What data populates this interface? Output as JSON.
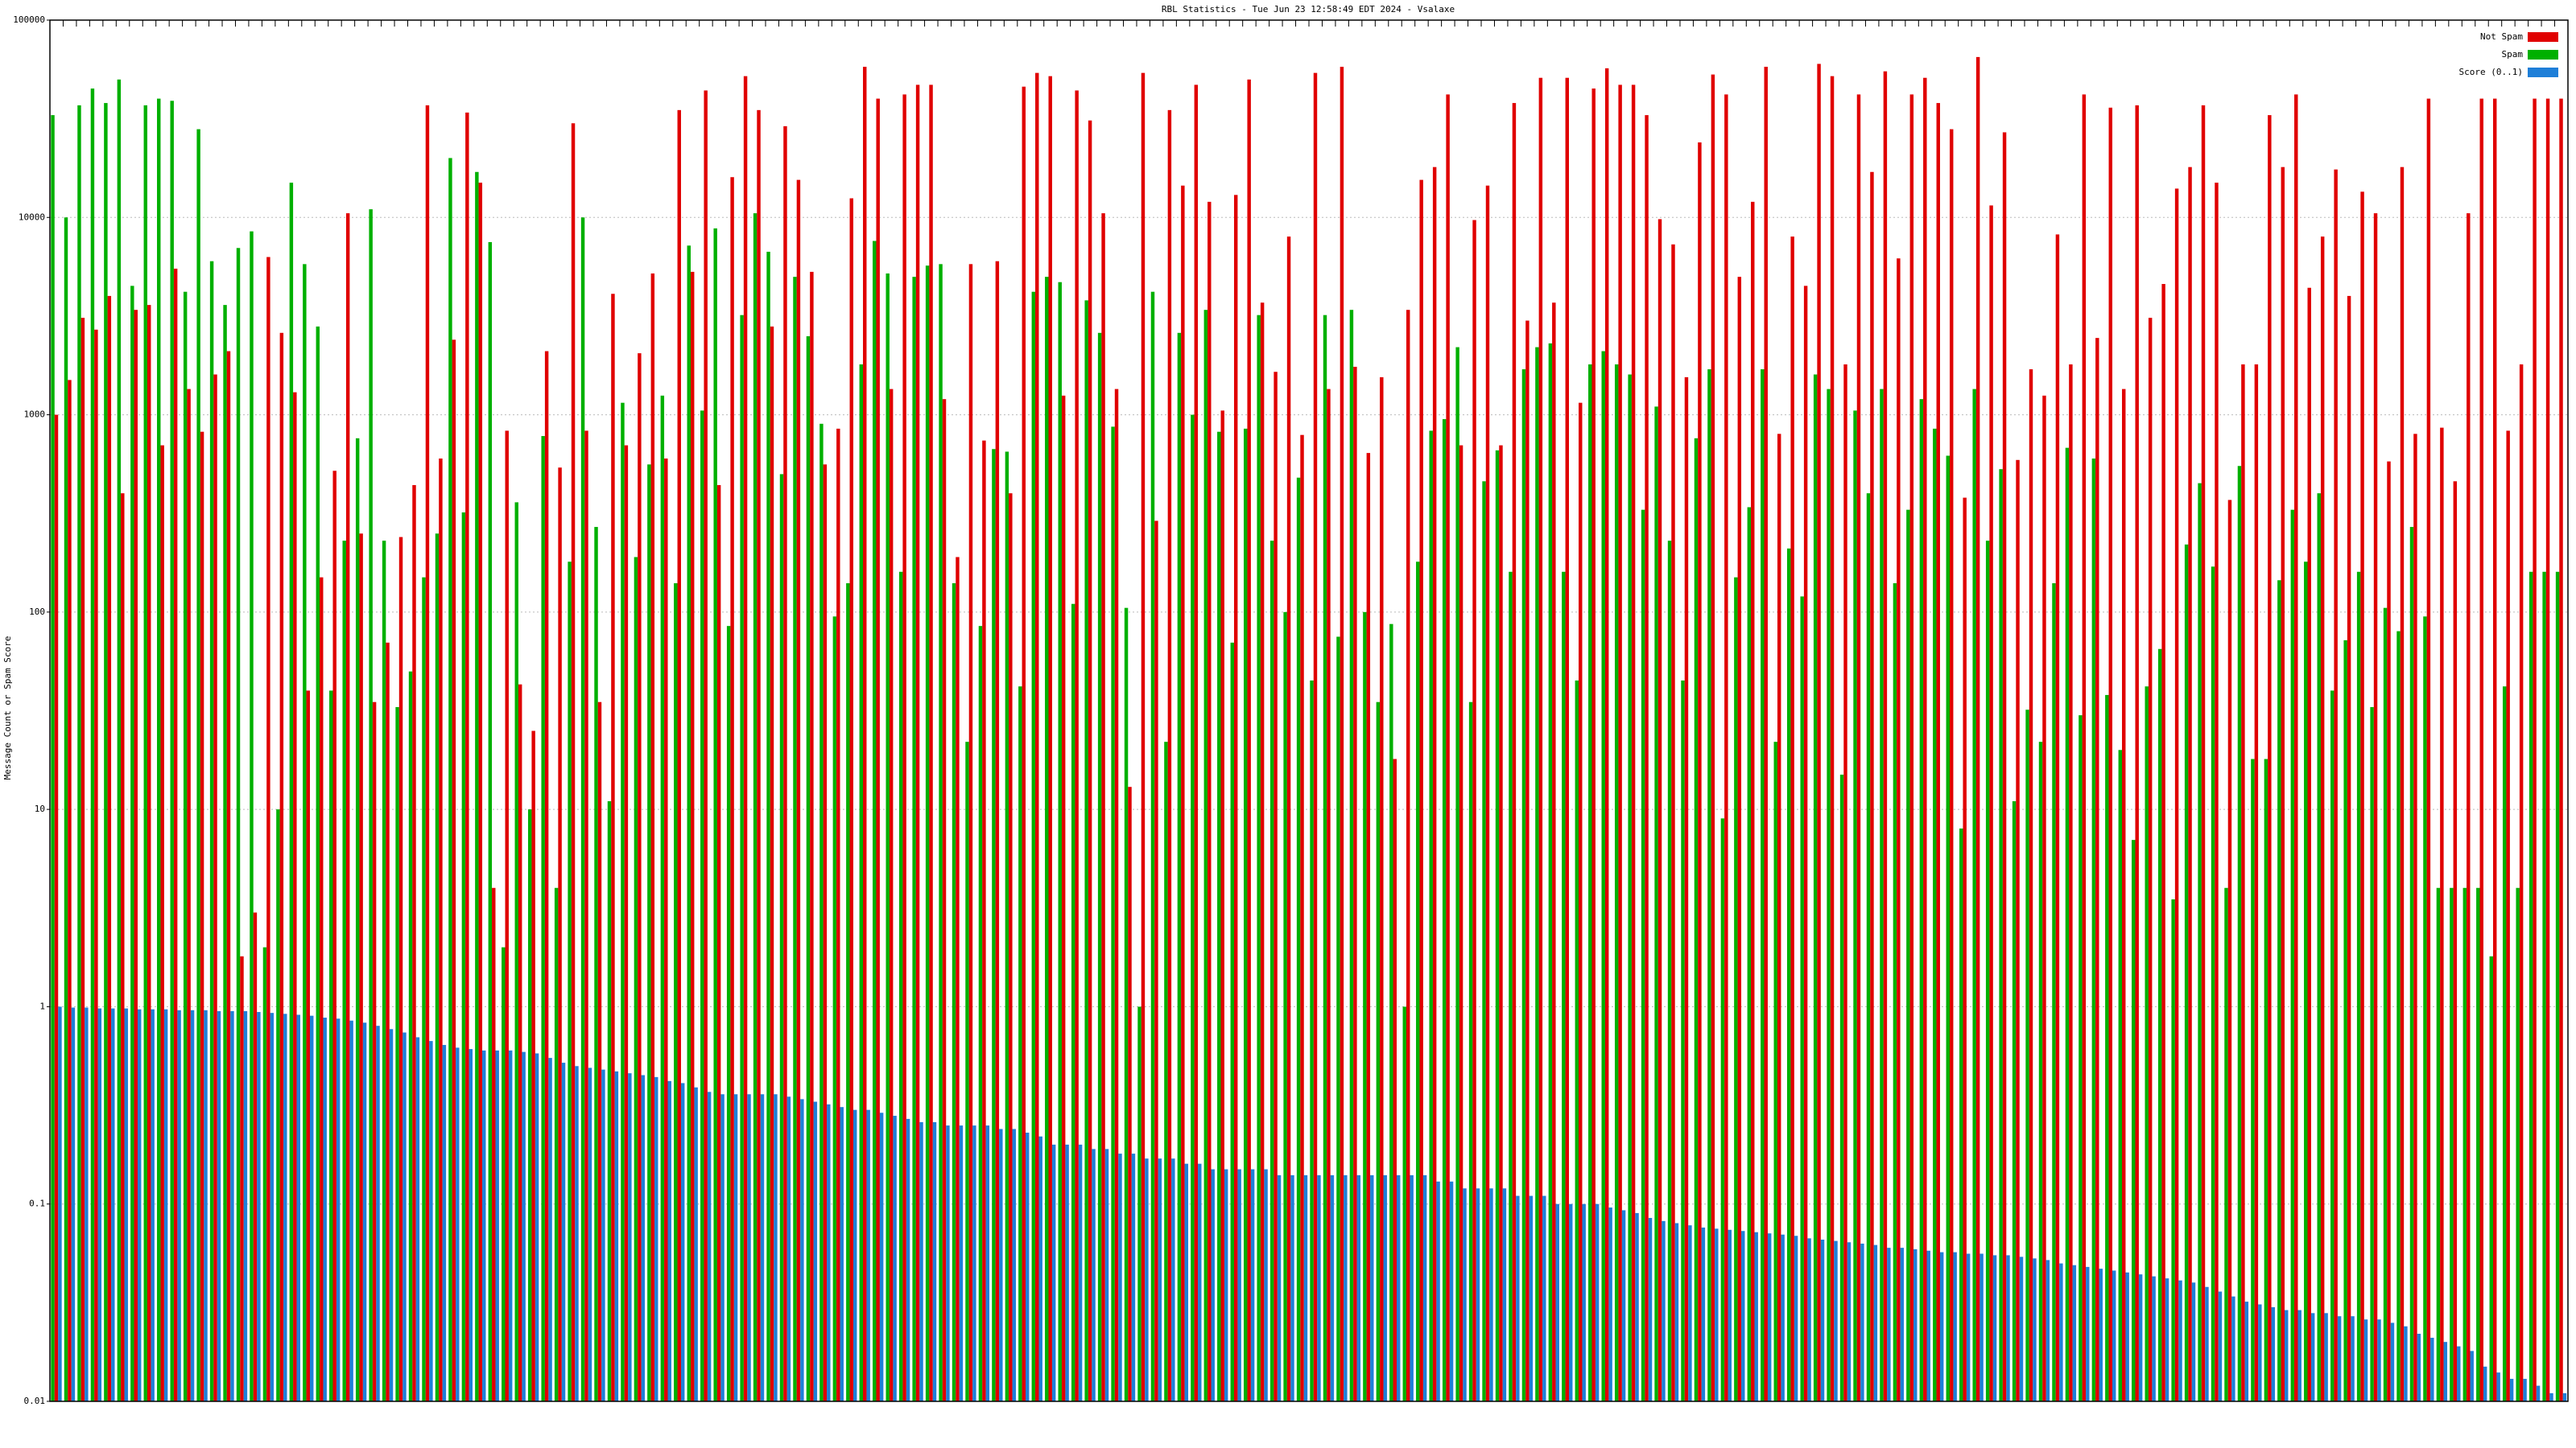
{
  "chart_data": {
    "type": "bar",
    "title": "RBL Statistics - Tue Jun 23 12:58:49 EDT 2024 - Vsalaxe",
    "y_label": "Message Count or Spam Score",
    "log_scale": true,
    "grid": true,
    "legend": "top-right",
    "ylim": [
      0.01,
      100000
    ],
    "yticks": [
      0.01,
      0.1,
      1,
      10,
      100,
      1000,
      10000,
      100000
    ],
    "series": [
      {
        "name": "Not Spam",
        "color": "#e00000",
        "values": [
          1000,
          1500,
          3100,
          2700,
          4000,
          400,
          3400,
          3600,
          700,
          5500,
          1350,
          820,
          1600,
          2100,
          1.8,
          3,
          6300,
          2600,
          1300,
          40,
          150,
          520,
          10500,
          250,
          35,
          70,
          240,
          440,
          37000,
          600,
          2400,
          34000,
          15000,
          4,
          830,
          43,
          25,
          2100,
          540,
          30000,
          830,
          35,
          4100,
          700,
          2050,
          5200,
          600,
          35000,
          5300,
          44000,
          440,
          16000,
          52000,
          35000,
          2800,
          29000,
          15500,
          5300,
          560,
          850,
          12500,
          58000,
          40000,
          1350,
          42000,
          47000,
          47000,
          1200,
          190,
          5800,
          740,
          6000,
          400,
          46000,
          54000,
          52000,
          1250,
          44000,
          31000,
          10500,
          1350,
          13,
          54000,
          290,
          35000,
          14500,
          47000,
          12000,
          1050,
          13000,
          50000,
          3700,
          1650,
          8000,
          790,
          54000,
          1350,
          58000,
          1750,
          640,
          1550,
          18,
          3400,
          15500,
          18000,
          42000,
          700,
          9700,
          14500,
          700,
          38000,
          3000,
          51000,
          3700,
          51000,
          1150,
          45000,
          57000,
          47000,
          47000,
          33000,
          9800,
          7300,
          1550,
          24000,
          53000,
          42000,
          5000,
          12000,
          58000,
          800,
          8000,
          4500,
          60000,
          52000,
          1800,
          42000,
          17000,
          55000,
          6200,
          42000,
          51000,
          38000,
          28000,
          380,
          65000,
          11500,
          27000,
          590,
          1700,
          1250,
          8200,
          1800,
          42000,
          2450,
          36000,
          1350,
          37000,
          3100,
          4600,
          14000,
          18000,
          37000,
          15000,
          370,
          1800,
          1800,
          33000,
          18000,
          42000,
          4400,
          8000,
          17500,
          4000,
          13500,
          10500,
          580,
          18000,
          800,
          40000,
          860,
          460,
          10500,
          40000,
          40000,
          830,
          1800,
          40000,
          40000,
          40000
        ]
      },
      {
        "name": "Spam",
        "color": "#00b000",
        "values": [
          33000,
          10000,
          37000,
          45000,
          38000,
          50000,
          4500,
          37000,
          40000,
          39000,
          4200,
          28000,
          6000,
          3600,
          7000,
          8500,
          2,
          10,
          15000,
          5800,
          2800,
          40,
          230,
          760,
          11000,
          230,
          33,
          50,
          150,
          250,
          20000,
          320,
          17000,
          7500,
          2,
          360,
          10,
          780,
          4,
          180,
          10000,
          270,
          11,
          1150,
          190,
          560,
          1250,
          140,
          7200,
          1050,
          8800,
          85,
          3200,
          10500,
          6700,
          500,
          5000,
          2500,
          900,
          95,
          140,
          1800,
          7600,
          5200,
          160,
          5000,
          5700,
          5800,
          140,
          22,
          85,
          670,
          650,
          42,
          4200,
          5000,
          4700,
          110,
          3800,
          2600,
          870,
          105,
          1,
          4200,
          22,
          2600,
          1000,
          3400,
          820,
          70,
          850,
          3200,
          230,
          100,
          480,
          45,
          3200,
          75,
          3400,
          100,
          35,
          87,
          1,
          180,
          830,
          950,
          2200,
          35,
          460,
          660,
          160,
          1700,
          2200,
          2300,
          160,
          45,
          1800,
          2100,
          1800,
          1600,
          330,
          1100,
          230,
          45,
          760,
          1700,
          9,
          150,
          340,
          1700,
          22,
          210,
          120,
          1600,
          1350,
          15,
          1050,
          400,
          1350,
          140,
          330,
          1200,
          850,
          620,
          8,
          1350,
          230,
          530,
          11,
          32,
          22,
          140,
          680,
          30,
          600,
          38,
          20,
          7,
          42,
          65,
          3.5,
          220,
          450,
          170,
          4,
          550,
          18,
          18,
          145,
          330,
          180,
          400,
          40,
          72,
          160,
          33,
          105,
          80,
          270,
          95,
          4,
          4,
          4,
          4,
          1.8,
          42,
          4,
          160,
          160,
          160
        ]
      },
      {
        "name": "Score (0..1)",
        "color": "#1e7fd8",
        "values": [
          1,
          0.99,
          0.99,
          0.98,
          0.98,
          0.98,
          0.97,
          0.97,
          0.97,
          0.96,
          0.96,
          0.96,
          0.95,
          0.95,
          0.95,
          0.94,
          0.93,
          0.92,
          0.91,
          0.9,
          0.88,
          0.87,
          0.85,
          0.83,
          0.8,
          0.77,
          0.74,
          0.7,
          0.67,
          0.64,
          0.62,
          0.61,
          0.6,
          0.6,
          0.6,
          0.59,
          0.58,
          0.55,
          0.52,
          0.5,
          0.49,
          0.48,
          0.47,
          0.46,
          0.45,
          0.44,
          0.42,
          0.41,
          0.39,
          0.37,
          0.36,
          0.36,
          0.36,
          0.36,
          0.36,
          0.35,
          0.34,
          0.33,
          0.32,
          0.31,
          0.3,
          0.3,
          0.29,
          0.28,
          0.27,
          0.26,
          0.26,
          0.25,
          0.25,
          0.25,
          0.25,
          0.24,
          0.24,
          0.23,
          0.22,
          0.2,
          0.2,
          0.2,
          0.19,
          0.19,
          0.18,
          0.18,
          0.17,
          0.17,
          0.17,
          0.16,
          0.16,
          0.15,
          0.15,
          0.15,
          0.15,
          0.15,
          0.14,
          0.14,
          0.14,
          0.14,
          0.14,
          0.14,
          0.14,
          0.14,
          0.14,
          0.14,
          0.14,
          0.14,
          0.13,
          0.13,
          0.12,
          0.12,
          0.12,
          0.12,
          0.11,
          0.11,
          0.11,
          0.1,
          0.1,
          0.1,
          0.1,
          0.096,
          0.093,
          0.09,
          0.085,
          0.082,
          0.08,
          0.078,
          0.076,
          0.075,
          0.074,
          0.073,
          0.072,
          0.071,
          0.07,
          0.069,
          0.067,
          0.066,
          0.065,
          0.064,
          0.063,
          0.062,
          0.06,
          0.06,
          0.059,
          0.058,
          0.057,
          0.057,
          0.056,
          0.056,
          0.055,
          0.055,
          0.054,
          0.053,
          0.052,
          0.05,
          0.049,
          0.048,
          0.047,
          0.046,
          0.045,
          0.044,
          0.043,
          0.042,
          0.041,
          0.04,
          0.038,
          0.036,
          0.034,
          0.032,
          0.031,
          0.03,
          0.029,
          0.029,
          0.028,
          0.028,
          0.027,
          0.027,
          0.026,
          0.026,
          0.025,
          0.024,
          0.022,
          0.021,
          0.02,
          0.019,
          0.018,
          0.015,
          0.014,
          0.013,
          0.013,
          0.012,
          0.011,
          0.011
        ]
      }
    ]
  }
}
